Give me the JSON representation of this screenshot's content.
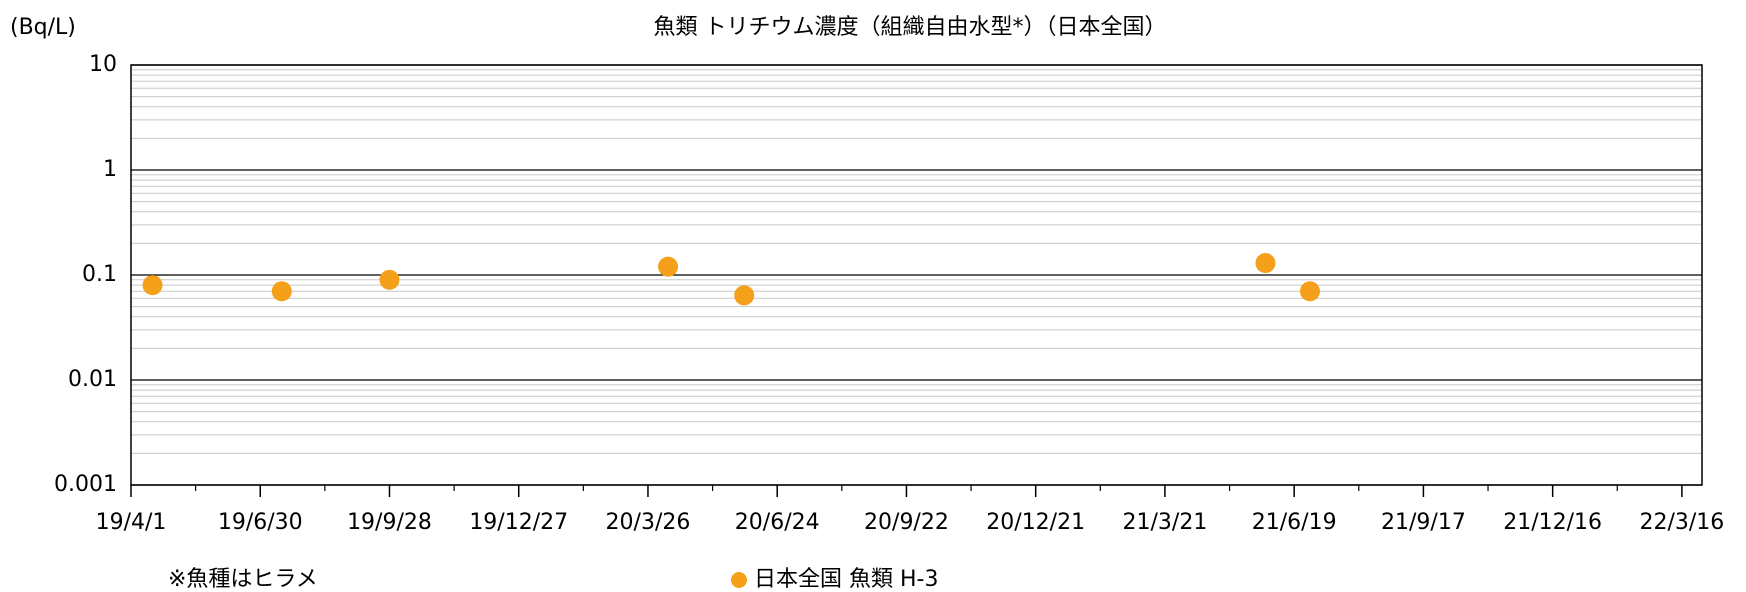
{
  "chart_data": {
    "type": "scatter",
    "title": "魚類 トリチウム濃度（組織自由水型*）（日本全国）",
    "y_label": "(Bq/L)",
    "note": "※魚種はヒラメ",
    "log_y": true,
    "grid": true,
    "minor_grid": true,
    "minor_xticks": true,
    "xlim": [
      "2019-04-01",
      "2022-03-30"
    ],
    "xticks": [
      {
        "value": "2019-04-01",
        "label": "19/4/1"
      },
      {
        "value": "2019-06-30",
        "label": "19/6/30"
      },
      {
        "value": "2019-09-28",
        "label": "19/9/28"
      },
      {
        "value": "2019-12-27",
        "label": "19/12/27"
      },
      {
        "value": "2020-03-26",
        "label": "20/3/26"
      },
      {
        "value": "2020-06-24",
        "label": "20/6/24"
      },
      {
        "value": "2020-09-22",
        "label": "20/9/22"
      },
      {
        "value": "2020-12-21",
        "label": "20/12/21"
      },
      {
        "value": "2021-03-21",
        "label": "21/3/21"
      },
      {
        "value": "2021-06-19",
        "label": "21/6/19"
      },
      {
        "value": "2021-09-17",
        "label": "21/9/17"
      },
      {
        "value": "2021-12-16",
        "label": "21/12/16"
      },
      {
        "value": "2022-03-16",
        "label": "22/3/16"
      }
    ],
    "ylim": [
      0.001,
      10
    ],
    "yticks": [
      0.001,
      0.01,
      0.1,
      1,
      10
    ],
    "series": [
      {
        "name": "日本全国 魚類 H-3",
        "color": "#f5a01a",
        "x": [
          "2019-04-16",
          "2019-07-15",
          "2019-09-28",
          "2020-04-09",
          "2020-06-01",
          "2021-05-30",
          "2021-06-30"
        ],
        "values": [
          0.08,
          0.07,
          0.09,
          0.12,
          0.064,
          0.13,
          0.07
        ]
      }
    ]
  }
}
